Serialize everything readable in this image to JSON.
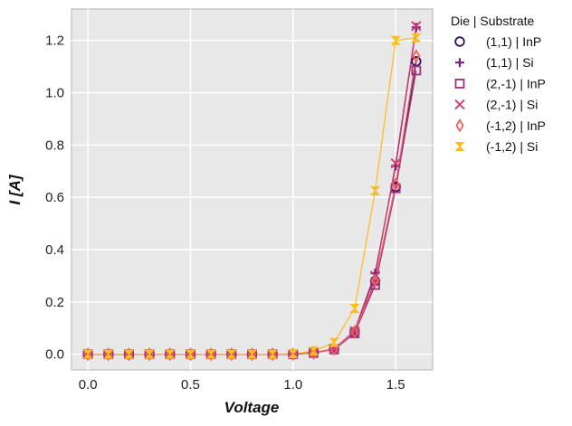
{
  "chart_data": {
    "type": "line",
    "xlabel": "Voltage",
    "ylabel": "I [A]",
    "xlim": [
      -0.08,
      1.68
    ],
    "ylim": [
      -0.06,
      1.32
    ],
    "xticks": [
      0.0,
      0.5,
      1.0,
      1.5
    ],
    "xtick_labels": [
      "0.0",
      "0.5",
      "1.0",
      "1.5"
    ],
    "yticks": [
      0.0,
      0.2,
      0.4,
      0.6,
      0.8,
      1.0,
      1.2
    ],
    "ytick_labels": [
      "0.0",
      "0.2",
      "0.4",
      "0.6",
      "0.8",
      "1.0",
      "1.2"
    ],
    "grid": true,
    "legend_title": "Die | Substrate",
    "legend_position": "outside-right",
    "x": [
      0.0,
      0.1,
      0.2,
      0.3,
      0.4,
      0.5,
      0.6,
      0.7,
      0.8,
      0.9,
      1.0,
      1.1,
      1.2,
      1.3,
      1.4,
      1.5,
      1.6
    ],
    "series": [
      {
        "name": "(1,1) | InP",
        "marker": "circle",
        "color": "#2d1160",
        "values": [
          0,
          0,
          0,
          0,
          0,
          0,
          0,
          0,
          0,
          0,
          0,
          0.005,
          0.02,
          0.085,
          0.28,
          0.64,
          1.12
        ]
      },
      {
        "name": "(1,1) | Si",
        "marker": "plus",
        "color": "#721f81",
        "values": [
          0,
          0,
          0,
          0,
          0,
          0,
          0,
          0,
          0,
          0,
          0,
          0.006,
          0.02,
          0.09,
          0.31,
          0.72,
          1.25
        ]
      },
      {
        "name": "(2,-1) | InP",
        "marker": "square",
        "color": "#9e2f7f",
        "values": [
          0,
          0,
          0,
          0,
          0,
          0,
          0,
          0,
          0,
          0,
          0,
          0.005,
          0.018,
          0.08,
          0.265,
          0.635,
          1.085
        ]
      },
      {
        "name": "(2,-1) | Si",
        "marker": "x",
        "color": "#cd4071",
        "values": [
          0,
          0,
          0,
          0,
          0,
          0,
          0,
          0,
          0,
          0,
          0,
          0.006,
          0.02,
          0.088,
          0.3,
          0.73,
          1.255
        ]
      },
      {
        "name": "(-1,2) | InP",
        "marker": "thin_diamond",
        "color": "#f1605d",
        "values": [
          0,
          0,
          0,
          0,
          0,
          0,
          0,
          0,
          0,
          0,
          0,
          0.005,
          0.02,
          0.085,
          0.28,
          0.65,
          1.14
        ]
      },
      {
        "name": "(-1,2) | Si",
        "marker": "bowtie",
        "color": "#fbbe22",
        "values": [
          0,
          0,
          0,
          0,
          0,
          0,
          0,
          0,
          0,
          0,
          0.002,
          0.012,
          0.045,
          0.175,
          0.625,
          1.2,
          1.21
        ]
      }
    ]
  }
}
